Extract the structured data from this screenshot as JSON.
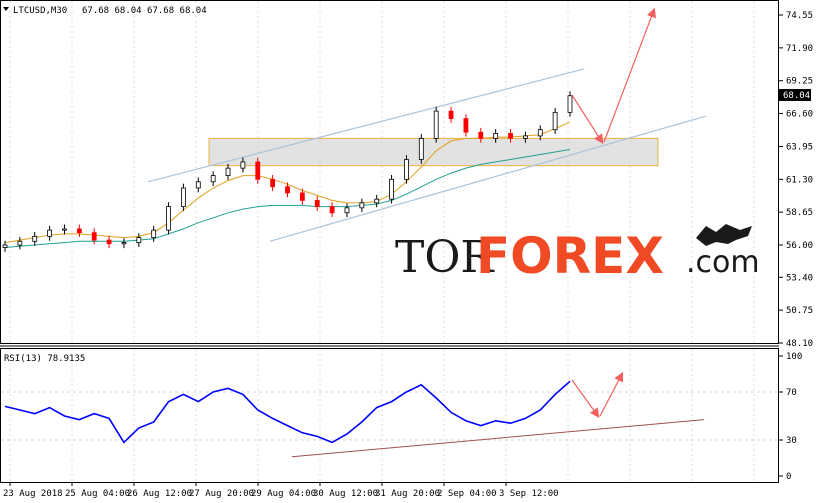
{
  "header": {
    "symbol": "LTCUSD,M30",
    "ohlc": "67.68 68.04 67.68 68.04"
  },
  "rsi": {
    "label": "RSI(13) 78.9135",
    "levels": [
      100,
      70,
      30,
      0
    ],
    "level_labels": [
      "100",
      "70",
      "30",
      "0"
    ]
  },
  "watermark": {
    "part1": "TOR",
    "part2": "FOREX",
    "part3": ".com"
  },
  "colors": {
    "grid": "#c8c8c8",
    "candle_up": "#000000",
    "candle_down": "#ff0000",
    "ma_fast": "#e0a020",
    "ma_slow": "#20a090",
    "channel": "#a8c4dc",
    "zone_fill": "#d8d8d8",
    "zone_border": "#f0b040",
    "arrow": "#f06060",
    "rsi_line": "#0000ff",
    "rsi_trend": "#a05050",
    "brand_orange": "#ef4a23"
  },
  "chart_data": {
    "type": "line",
    "title": "LTCUSD,M30",
    "current_price": "68.04",
    "y_ticks": [
      "74.55",
      "71.90",
      "69.25",
      "66.60",
      "63.95",
      "61.30",
      "58.65",
      "56.00",
      "53.40",
      "50.75",
      "48.10"
    ],
    "ylim": [
      48.1,
      74.55
    ],
    "x_ticks": [
      "23 Aug 2018",
      "25 Aug 04:00",
      "26 Aug 12:00",
      "27 Aug 20:00",
      "29 Aug 04:00",
      "30 Aug 12:00",
      "31 Aug 20:00",
      "2 Sep 04:00",
      "3 Sep 12:00"
    ],
    "price_close": [
      56.0,
      56.3,
      56.7,
      57.2,
      57.3,
      57.0,
      56.4,
      56.1,
      56.2,
      56.6,
      57.2,
      59.1,
      60.6,
      61.1,
      61.6,
      62.2,
      62.7,
      61.3,
      60.7,
      60.2,
      59.6,
      59.1,
      58.6,
      59.0,
      59.4,
      59.7,
      61.3,
      62.9,
      64.6,
      66.8,
      66.2,
      65.1,
      64.6,
      65.0,
      64.6,
      64.8,
      65.3,
      66.7,
      68.04
    ],
    "ma_fast": [
      56.2,
      56.4,
      56.6,
      56.8,
      56.9,
      56.9,
      56.8,
      56.7,
      56.6,
      56.7,
      57.0,
      57.8,
      58.8,
      59.8,
      60.6,
      61.2,
      61.6,
      61.6,
      61.3,
      60.9,
      60.4,
      60.0,
      59.6,
      59.4,
      59.4,
      59.5,
      60.1,
      61.1,
      62.3,
      63.6,
      64.4,
      64.6,
      64.6,
      64.7,
      64.7,
      64.8,
      64.9,
      65.4,
      65.9
    ],
    "ma_slow": [
      55.8,
      55.9,
      56.0,
      56.1,
      56.2,
      56.3,
      56.3,
      56.3,
      56.3,
      56.4,
      56.5,
      56.9,
      57.3,
      57.8,
      58.2,
      58.6,
      58.9,
      59.1,
      59.2,
      59.2,
      59.2,
      59.1,
      59.1,
      59.1,
      59.2,
      59.3,
      59.6,
      60.1,
      60.7,
      61.3,
      61.8,
      62.2,
      62.5,
      62.7,
      62.9,
      63.1,
      63.3,
      63.5,
      63.7
    ],
    "rsi_values": [
      58,
      55,
      52,
      57,
      50,
      47,
      52,
      48,
      28,
      40,
      45,
      62,
      68,
      62,
      70,
      73,
      68,
      55,
      48,
      42,
      36,
      33,
      28,
      35,
      45,
      57,
      62,
      70,
      76,
      65,
      53,
      46,
      42,
      46,
      44,
      48,
      55,
      68,
      78.9
    ]
  }
}
